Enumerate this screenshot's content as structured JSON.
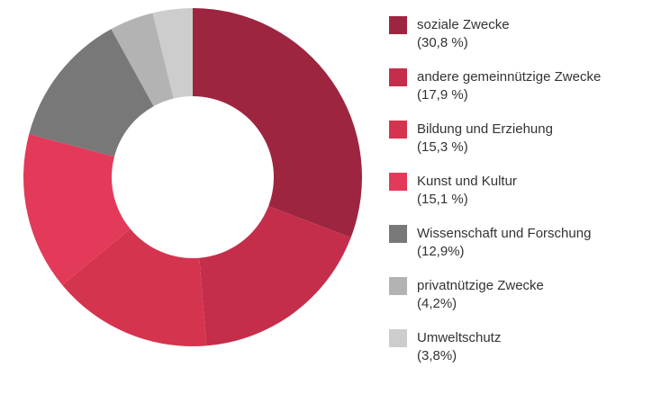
{
  "chart_data": {
    "type": "pie",
    "variant": "donut",
    "categories": [
      "soziale Zwecke",
      "andere gemeinnützige Zwecke",
      "Bildung und Erziehung",
      "Kunst und Kultur",
      "Wissenschaft und Forschung",
      "privatnützige Zwecke",
      "Umweltschutz"
    ],
    "values": [
      30.8,
      17.9,
      15.3,
      15.1,
      12.9,
      4.2,
      3.8
    ],
    "value_labels": [
      "(30,8 %)",
      "(17,9 %)",
      "(15,3 %)",
      "(15,1 %)",
      "(12,9%)",
      "(4,2%)",
      "(3,8%)"
    ],
    "colors": [
      "#9e253f",
      "#c42e4b",
      "#d5344f",
      "#e33a5a",
      "#787878",
      "#b3b3b3",
      "#cdcdcd"
    ],
    "legend_position": "right",
    "start_angle": "top",
    "direction": "clockwise"
  }
}
